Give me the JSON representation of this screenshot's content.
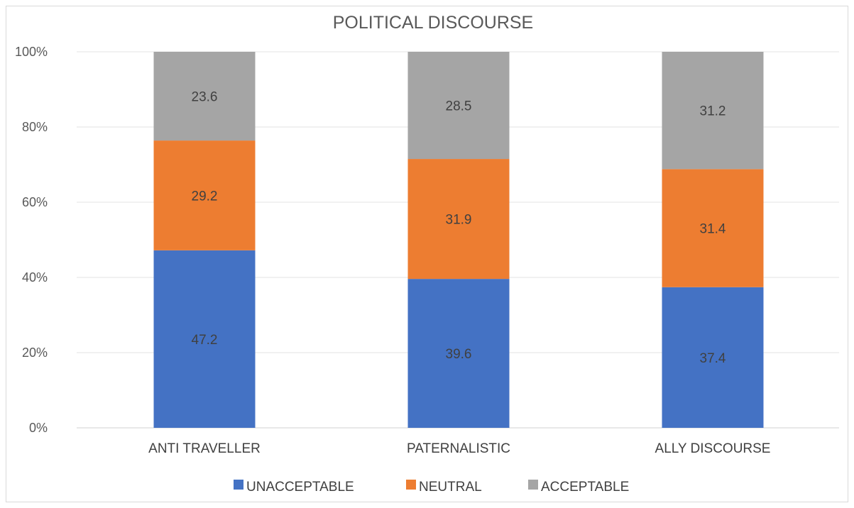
{
  "chart_data": {
    "type": "bar",
    "stacked": "percent",
    "title": "POLITICAL DISCOURSE",
    "xlabel": "",
    "ylabel": "",
    "categories": [
      "ANTI TRAVELLER",
      "PATERNALISTIC",
      "ALLY DISCOURSE"
    ],
    "series": [
      {
        "name": "UNACCEPTABLE",
        "color": "#4472c4",
        "values": [
          47.2,
          39.6,
          37.4
        ]
      },
      {
        "name": "NEUTRAL",
        "color": "#ed7d31",
        "values": [
          29.2,
          31.9,
          31.4
        ]
      },
      {
        "name": "ACCEPTABLE",
        "color": "#a5a5a5",
        "values": [
          23.6,
          28.5,
          31.2
        ]
      }
    ],
    "y_ticks": [
      "0%",
      "20%",
      "40%",
      "60%",
      "80%",
      "100%"
    ],
    "ylim": [
      0,
      100
    ],
    "grid": true,
    "legend": "bottom",
    "data_labels": true
  }
}
